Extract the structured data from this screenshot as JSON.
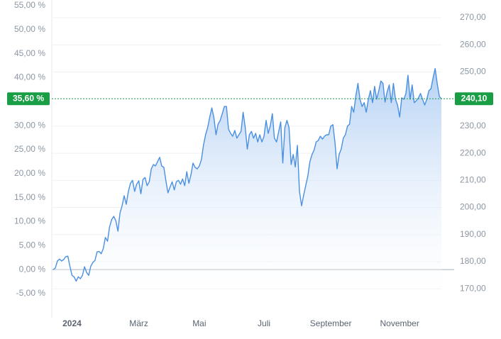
{
  "chart_data": {
    "type": "area",
    "color": "#4a90e2",
    "categories": [
      null,
      null,
      null,
      null,
      null,
      null,
      null,
      null,
      null,
      "2024",
      null,
      null,
      null,
      null,
      null,
      null,
      null,
      null,
      null,
      null,
      null,
      null,
      null,
      null,
      null,
      null,
      null,
      null,
      null,
      null,
      null,
      null,
      null,
      null,
      null,
      null,
      null,
      null,
      null,
      null,
      null,
      "März",
      null,
      null,
      null,
      null,
      null,
      null,
      null,
      null,
      null,
      null,
      null,
      null,
      null,
      null,
      null,
      null,
      null,
      null,
      null,
      null,
      null,
      null,
      null,
      null,
      null,
      null,
      null,
      null,
      "Mai",
      null,
      null,
      null,
      null,
      null,
      null,
      null,
      null,
      null,
      null,
      null,
      null,
      null,
      null,
      null,
      null,
      null,
      null,
      null,
      null,
      null,
      null,
      null,
      null,
      null,
      null,
      null,
      null,
      null,
      null,
      "Juli",
      null,
      null,
      null,
      null,
      null,
      null,
      null,
      null,
      null,
      null,
      null,
      null,
      null,
      null,
      null,
      null,
      null,
      null,
      null,
      null,
      null,
      null,
      null,
      null,
      null,
      null,
      null,
      null,
      null,
      null,
      null,
      "September",
      null,
      null,
      null,
      null,
      null,
      null,
      null,
      null,
      null,
      null,
      null,
      null,
      null,
      null,
      null,
      null,
      null,
      null,
      null,
      null,
      null,
      null,
      null,
      null,
      null,
      null,
      null,
      null,
      null,
      null,
      null,
      null,
      "November",
      null,
      null,
      null,
      null,
      null,
      null,
      null,
      null,
      null,
      null,
      null,
      null,
      null,
      null,
      null,
      null,
      null,
      null,
      null,
      null
    ],
    "values": [
      0,
      0.3,
      1.8,
      2.2,
      1.8,
      2.1,
      2.7,
      2.8,
      0.7,
      -1.2,
      -1.5,
      -2.4,
      -1.5,
      -1.9,
      -1.2,
      0.6,
      -0.6,
      -1.2,
      0.7,
      1.5,
      1.9,
      3.7,
      3.8,
      3.3,
      4.4,
      6.7,
      5.9,
      8.9,
      10.4,
      11.1,
      10.2,
      8.0,
      11.8,
      13.3,
      15.4,
      13.6,
      16.3,
      18.0,
      18.6,
      16.3,
      17.8,
      18.5,
      15.8,
      18.8,
      19.2,
      17.5,
      18.3,
      21.0,
      21.9,
      21.6,
      22.5,
      23.4,
      21.6,
      21.3,
      18.5,
      16.0,
      17.2,
      18.3,
      16.6,
      18.3,
      18.6,
      17.8,
      18.9,
      17.5,
      20.4,
      18.0,
      19.8,
      22.2,
      21.3,
      21.0,
      21.6,
      22.9,
      25.9,
      28.1,
      29.6,
      31.8,
      33.7,
      31.7,
      28.1,
      30.3,
      31.1,
      32.5,
      34.0,
      34.0,
      29.3,
      28.4,
      27.8,
      29.0,
      27.4,
      28.1,
      28.8,
      32.8,
      29.6,
      25.1,
      28.1,
      28.8,
      27.4,
      28.4,
      26.6,
      28.1,
      26.6,
      27.8,
      31.1,
      28.4,
      29.9,
      32.5,
      27.4,
      26.6,
      28.7,
      30.8,
      22.2,
      29.6,
      31.1,
      29.6,
      21.9,
      24.0,
      21.4,
      25.9,
      16.3,
      13.3,
      15.5,
      17.5,
      19.5,
      22.5,
      24.0,
      24.9,
      26.6,
      26.9,
      27.8,
      27.2,
      27.8,
      28.1,
      28.1,
      29.9,
      30.2,
      26.6,
      21.0,
      24.0,
      25.1,
      27.4,
      28.1,
      29.9,
      30.3,
      34.0,
      32.8,
      36.2,
      38.8,
      35.5,
      34.0,
      34.8,
      32.8,
      35.5,
      37.3,
      34.8,
      38.2,
      35.5,
      37.3,
      39.3,
      38.8,
      34.9,
      37.0,
      38.5,
      34.8,
      38.8,
      35.5,
      34.3,
      31.8,
      35.8,
      35.5,
      36.7,
      40.5,
      35.5,
      38.5,
      34.8,
      35.2,
      35.8,
      36.7,
      35.5,
      34.3,
      35.5,
      37.3,
      37.7,
      39.9,
      41.9,
      38.8,
      36.1,
      35.6
    ],
    "ylim": [
      -5,
      55
    ],
    "yticks": [
      {
        "value": -5,
        "label": "-5,00 %"
      },
      {
        "value": 0,
        "label": "0,00 %"
      },
      {
        "value": 5,
        "label": "5,00 %"
      },
      {
        "value": 10,
        "label": "10,00 %"
      },
      {
        "value": 15,
        "label": "15,00 %"
      },
      {
        "value": 20,
        "label": "20,00 %"
      },
      {
        "value": 25,
        "label": "25,00 %"
      },
      {
        "value": 30,
        "label": "30,00 %"
      },
      {
        "value": 40,
        "label": "40,00 %"
      },
      {
        "value": 45,
        "label": "45,00 %"
      },
      {
        "value": 50,
        "label": "50,00 %"
      },
      {
        "value": 55,
        "label": "55,00 %"
      }
    ],
    "y2lim": [
      168.22,
      274.46
    ],
    "y2ticks": [
      {
        "value": 170,
        "label": "170,00"
      },
      {
        "value": 180,
        "label": "180,00"
      },
      {
        "value": 190,
        "label": "190,00"
      },
      {
        "value": 200,
        "label": "200,00"
      },
      {
        "value": 210,
        "label": "210,00"
      },
      {
        "value": 220,
        "label": "220,00"
      },
      {
        "value": 230,
        "label": "230,00"
      },
      {
        "value": 250,
        "label": "250,00"
      },
      {
        "value": 260,
        "label": "260,00"
      },
      {
        "value": 270,
        "label": "270,00"
      }
    ],
    "grid": true,
    "current": {
      "value": 35.6,
      "label": "35,60 %",
      "y2_value": 240.1,
      "y2_label": "240,10",
      "color": "#1a9e45"
    }
  }
}
